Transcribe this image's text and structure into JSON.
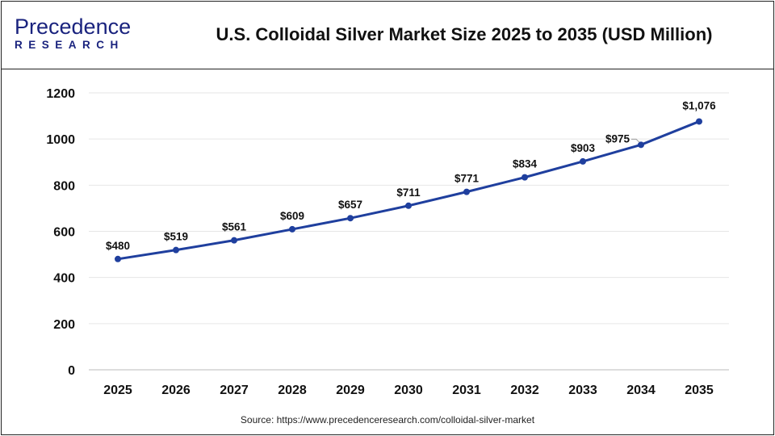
{
  "logo": {
    "line1": "Precedence",
    "line2": "RESEARCH"
  },
  "header": {
    "title": "U.S. Colloidal Silver Market Size 2025 to 2035 (USD Million)"
  },
  "source": "Source: https://www.precedenceresearch.com/colloidal-silver-market",
  "chart_data": {
    "type": "line",
    "title": "U.S. Colloidal Silver Market Size 2025 to 2035 (USD Million)",
    "categories": [
      "2025",
      "2026",
      "2027",
      "2028",
      "2029",
      "2030",
      "2031",
      "2032",
      "2033",
      "2034",
      "2035"
    ],
    "values": [
      480,
      519,
      561,
      609,
      657,
      711,
      771,
      834,
      903,
      975,
      1076
    ],
    "data_labels": [
      "$480",
      "$519",
      "$561",
      "$609",
      "$657",
      "$711",
      "$771",
      "$834",
      "$903",
      "$975",
      "$1,076"
    ],
    "yticks": [
      0,
      200,
      400,
      600,
      800,
      1000,
      1200
    ],
    "ylim": [
      0,
      1200
    ],
    "grid": true,
    "line_color": "#1f3f9e"
  }
}
